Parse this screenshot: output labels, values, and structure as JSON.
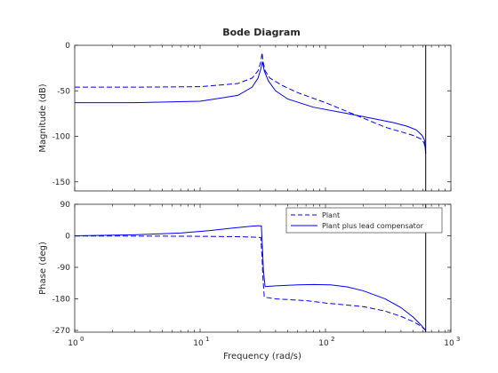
{
  "chart_data": {
    "type": "line",
    "title": "Bode Diagram",
    "xlabel": "Frequency  (rad/s)",
    "xscale": "log",
    "xlim": [
      1,
      1000
    ],
    "x_ticks": [
      1,
      10,
      100,
      1000
    ],
    "x_tick_labels": [
      {
        "base": "10",
        "exp": "0"
      },
      {
        "base": "10",
        "exp": "1"
      },
      {
        "base": "10",
        "exp": "2"
      },
      {
        "base": "10",
        "exp": "3"
      }
    ],
    "grid": false,
    "line_color": "#0000ff",
    "vertical_marker": {
      "x": 630,
      "color": "#000000"
    },
    "panels": [
      {
        "name": "magnitude",
        "ylabel": "Magnitude (dB)",
        "ylim": [
          -160,
          0
        ],
        "yticks": [
          0,
          -50,
          -100,
          -150
        ],
        "ytick_labels": [
          "0",
          "-50",
          "-100",
          "-150"
        ],
        "series": [
          {
            "name": "Plant",
            "style": "dashed",
            "points": [
              [
                1,
                -46
              ],
              [
                3,
                -46
              ],
              [
                10,
                -45.5
              ],
              [
                20,
                -42
              ],
              [
                26,
                -36
              ],
              [
                29,
                -28
              ],
              [
                30.5,
                -18
              ],
              [
                31.2,
                -8
              ],
              [
                31.8,
                -18
              ],
              [
                33,
                -28
              ],
              [
                36,
                -36
              ],
              [
                45,
                -44
              ],
              [
                60,
                -52
              ],
              [
                100,
                -63
              ],
              [
                200,
                -80
              ],
              [
                300,
                -90
              ],
              [
                400,
                -95
              ],
              [
                500,
                -99
              ],
              [
                580,
                -103
              ],
              [
                610,
                -107
              ],
              [
                625,
                -113
              ]
            ]
          },
          {
            "name": "Plant plus lead compensator",
            "style": "solid",
            "points": [
              [
                1,
                -63
              ],
              [
                3,
                -63
              ],
              [
                10,
                -61.5
              ],
              [
                20,
                -55
              ],
              [
                26,
                -46
              ],
              [
                29,
                -36
              ],
              [
                30.5,
                -26
              ],
              [
                31.4,
                -18
              ],
              [
                32.5,
                -28
              ],
              [
                35,
                -39
              ],
              [
                40,
                -50
              ],
              [
                50,
                -59
              ],
              [
                80,
                -68
              ],
              [
                150,
                -75
              ],
              [
                250,
                -81
              ],
              [
                350,
                -85
              ],
              [
                450,
                -89
              ],
              [
                530,
                -93
              ],
              [
                590,
                -99
              ],
              [
                615,
                -104
              ],
              [
                630,
                -119
              ]
            ]
          }
        ]
      },
      {
        "name": "phase",
        "ylabel": "Phase (deg)",
        "ylim": [
          -275,
          90
        ],
        "yticks": [
          90,
          0,
          -90,
          -180,
          -270
        ],
        "ytick_labels": [
          "90",
          "0",
          "-90",
          "-180",
          "-270"
        ],
        "series": [
          {
            "name": "Plant",
            "style": "dashed",
            "points": [
              [
                1,
                -0.5
              ],
              [
                5,
                -1
              ],
              [
                10,
                -1.5
              ],
              [
                20,
                -2.5
              ],
              [
                28,
                -4
              ],
              [
                30.5,
                -5
              ],
              [
                31.2,
                -60
              ],
              [
                31.7,
                -120
              ],
              [
                32.5,
                -175
              ],
              [
                40,
                -180
              ],
              [
                70,
                -185
              ],
              [
                100,
                -192
              ],
              [
                200,
                -202
              ],
              [
                300,
                -215
              ],
              [
                400,
                -230
              ],
              [
                500,
                -245
              ],
              [
                580,
                -258
              ],
              [
                630,
                -270
              ]
            ]
          },
          {
            "name": "Plant plus lead compensator",
            "style": "solid",
            "points": [
              [
                1,
                0
              ],
              [
                3,
                3
              ],
              [
                7,
                8
              ],
              [
                12,
                15
              ],
              [
                18,
                22
              ],
              [
                25,
                27
              ],
              [
                29,
                29
              ],
              [
                30.8,
                28
              ],
              [
                31.3,
                -20
              ],
              [
                32,
                -100
              ],
              [
                33,
                -145
              ],
              [
                40,
                -143
              ],
              [
                60,
                -140
              ],
              [
                80,
                -139
              ],
              [
                110,
                -140
              ],
              [
                150,
                -146
              ],
              [
                200,
                -157
              ],
              [
                300,
                -180
              ],
              [
                400,
                -205
              ],
              [
                500,
                -232
              ],
              [
                580,
                -255
              ],
              [
                630,
                -270
              ]
            ]
          }
        ]
      }
    ],
    "legend": {
      "placement": "top-right of phase panel"
    }
  }
}
